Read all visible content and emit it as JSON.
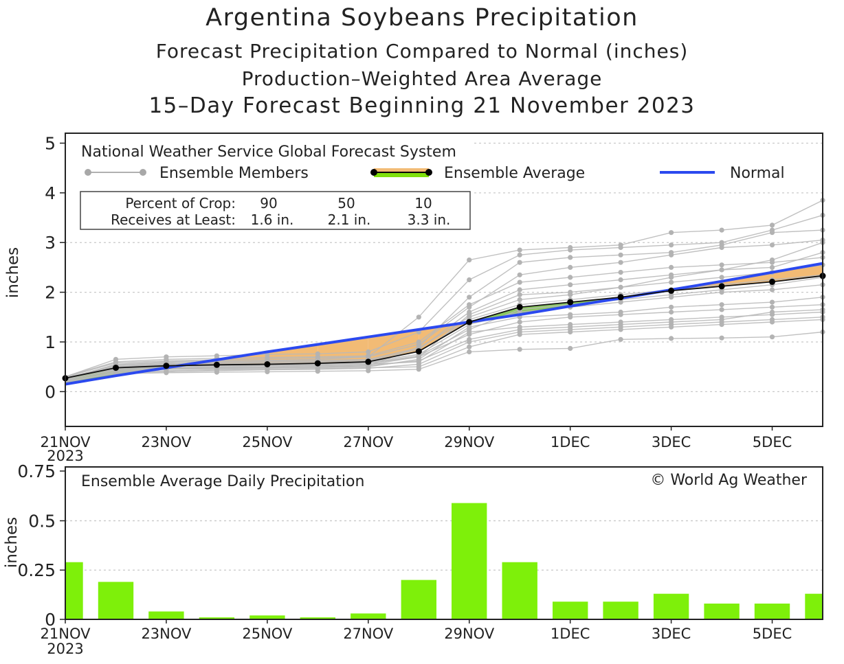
{
  "title": {
    "line1": "Argentina Soybeans Precipitation",
    "line2": "Forecast Precipitation Compared to Normal (inches)",
    "line3": "Production–Weighted Area Average",
    "line4": "15–Day Forecast Beginning 21 November 2023"
  },
  "colors": {
    "normal": "#2b49ef",
    "above_fill": "#8cc862",
    "below_fill": "#f2bb75",
    "member": "#b9b9b9",
    "bar": "#7ef00a",
    "grid": "#c8c8c8"
  },
  "chart_data": [
    {
      "type": "line",
      "ylabel": "inches",
      "ylim": [
        -0.7,
        5.2
      ],
      "yticks": [
        "0",
        "1",
        "2",
        "3",
        "4",
        "5"
      ],
      "xticks": [
        "21NOV",
        "23NOV",
        "25NOV",
        "27NOV",
        "29NOV",
        "1DEC",
        "3DEC",
        "5DEC"
      ],
      "xtick_sub": "2023",
      "legend": {
        "header": "National Weather Service Global Forecast System",
        "members_label": "Ensemble Members",
        "average_label": "Ensemble Average",
        "normal_label": "Normal"
      },
      "crop_table": {
        "row1_label": "Percent of Crop:",
        "row2_label": "Receives at Least:",
        "percents": [
          "90",
          "50",
          "10"
        ],
        "amounts": [
          "1.6 in.",
          "2.1 in.",
          "3.3 in."
        ]
      },
      "days": [
        0,
        1,
        2,
        3,
        4,
        5,
        6,
        7,
        8,
        9,
        10,
        11,
        12,
        13,
        14,
        15
      ],
      "ensemble_average": [
        0.27,
        0.48,
        0.52,
        0.54,
        0.55,
        0.57,
        0.6,
        0.81,
        1.4,
        1.7,
        1.8,
        1.9,
        2.03,
        2.12,
        2.21,
        2.33
      ],
      "normal": [
        0.15,
        0.32,
        0.48,
        0.64,
        0.8,
        0.95,
        1.1,
        1.25,
        1.4,
        1.55,
        1.72,
        1.88,
        2.05,
        2.22,
        2.4,
        2.58
      ],
      "ensemble_members": [
        [
          0.28,
          0.46,
          0.5,
          0.52,
          0.53,
          0.55,
          0.57,
          0.7,
          1.55,
          1.95,
          2.0,
          2.1,
          2.2,
          2.3,
          2.4,
          2.55
        ],
        [
          0.25,
          0.55,
          0.6,
          0.62,
          0.63,
          0.65,
          0.7,
          1.5,
          2.65,
          2.85,
          2.9,
          2.95,
          3.2,
          3.25,
          3.35,
          3.85
        ],
        [
          0.3,
          0.65,
          0.7,
          0.72,
          0.75,
          0.76,
          0.8,
          1.2,
          2.25,
          2.75,
          2.85,
          2.9,
          2.95,
          3.0,
          3.25,
          3.55
        ],
        [
          0.2,
          0.4,
          0.45,
          0.47,
          0.48,
          0.5,
          0.52,
          0.9,
          1.9,
          2.6,
          2.7,
          2.75,
          2.8,
          2.95,
          3.2,
          3.25
        ],
        [
          0.22,
          0.45,
          0.48,
          0.5,
          0.52,
          0.53,
          0.55,
          0.6,
          1.2,
          1.3,
          1.35,
          1.4,
          1.45,
          1.5,
          1.55,
          1.6
        ],
        [
          0.18,
          0.38,
          0.4,
          0.42,
          0.44,
          0.45,
          0.47,
          0.55,
          1.0,
          1.2,
          1.25,
          1.3,
          1.35,
          1.4,
          1.45,
          1.5
        ],
        [
          0.27,
          0.5,
          0.55,
          0.57,
          0.58,
          0.6,
          0.62,
          0.8,
          1.45,
          1.75,
          1.85,
          1.95,
          2.05,
          2.15,
          2.25,
          2.35
        ],
        [
          0.24,
          0.42,
          0.45,
          0.46,
          0.47,
          0.48,
          0.5,
          0.65,
          1.3,
          1.5,
          1.55,
          1.6,
          1.7,
          1.75,
          1.8,
          1.9
        ],
        [
          0.3,
          0.6,
          0.65,
          0.67,
          0.69,
          0.7,
          0.72,
          1.0,
          1.75,
          2.2,
          2.3,
          2.4,
          2.5,
          2.55,
          2.6,
          2.7
        ],
        [
          0.21,
          0.36,
          0.38,
          0.39,
          0.4,
          0.41,
          0.42,
          0.45,
          0.8,
          0.85,
          0.87,
          1.05,
          1.07,
          1.08,
          1.1,
          1.2
        ],
        [
          0.26,
          0.52,
          0.56,
          0.58,
          0.6,
          0.61,
          0.63,
          0.85,
          1.6,
          2.05,
          2.15,
          2.25,
          2.35,
          2.45,
          2.5,
          2.8
        ],
        [
          0.23,
          0.44,
          0.47,
          0.49,
          0.5,
          0.52,
          0.54,
          0.7,
          1.15,
          1.4,
          1.5,
          1.55,
          1.6,
          1.65,
          1.7,
          1.75
        ],
        [
          0.29,
          0.58,
          0.62,
          0.64,
          0.66,
          0.68,
          0.7,
          0.95,
          1.7,
          2.35,
          2.5,
          2.6,
          2.75,
          2.9,
          2.95,
          3.05
        ],
        [
          0.2,
          0.4,
          0.42,
          0.44,
          0.45,
          0.46,
          0.48,
          0.5,
          0.9,
          1.15,
          1.2,
          1.25,
          1.3,
          1.35,
          1.4,
          1.45
        ],
        [
          0.28,
          0.5,
          0.53,
          0.55,
          0.56,
          0.58,
          0.6,
          0.75,
          1.35,
          1.6,
          1.7,
          1.8,
          1.9,
          2.0,
          2.05,
          2.15
        ],
        [
          0.25,
          0.47,
          0.51,
          0.53,
          0.54,
          0.56,
          0.58,
          0.72,
          1.25,
          1.65,
          1.75,
          1.85,
          1.95,
          2.05,
          2.15,
          2.3
        ],
        [
          0.27,
          0.54,
          0.58,
          0.6,
          0.62,
          0.63,
          0.65,
          0.88,
          1.5,
          1.85,
          1.95,
          2.1,
          2.3,
          2.45,
          2.65,
          3.0
        ],
        [
          0.22,
          0.43,
          0.46,
          0.48,
          0.49,
          0.5,
          0.52,
          0.62,
          1.05,
          1.25,
          1.3,
          1.35,
          1.4,
          1.45,
          1.6,
          1.65
        ]
      ]
    },
    {
      "type": "bar",
      "title": "Ensemble Average Daily Precipitation",
      "credit": "© World Ag Weather",
      "ylabel": "inches",
      "ylim": [
        0,
        0.75
      ],
      "yticks": [
        "0",
        "0.25",
        "0.5",
        "0.75"
      ],
      "xticks": [
        "21NOV",
        "23NOV",
        "25NOV",
        "27NOV",
        "29NOV",
        "1DEC",
        "3DEC",
        "5DEC"
      ],
      "xtick_sub": "2023",
      "values": [
        0.29,
        0.19,
        0.04,
        0.01,
        0.02,
        0.01,
        0.03,
        0.2,
        0.59,
        0.29,
        0.09,
        0.09,
        0.13,
        0.08,
        0.08,
        0.13
      ]
    }
  ]
}
